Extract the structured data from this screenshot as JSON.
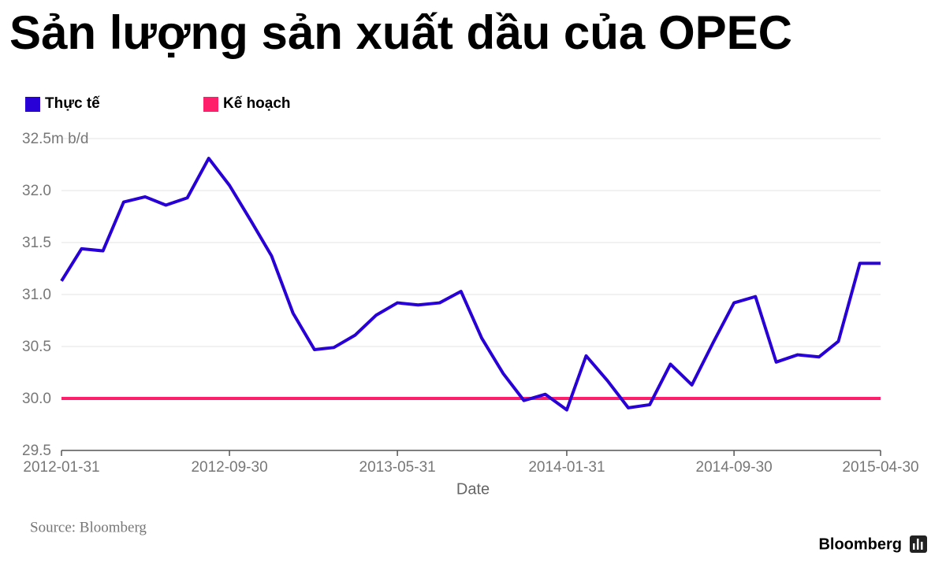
{
  "chart_data": {
    "type": "line",
    "title": "Sản lượng sản xuất dầu của OPEC",
    "x_label": "Date",
    "source": "Source: Bloomberg",
    "brand": "Bloomberg",
    "x": [
      "2012-01-31",
      "2012-02-29",
      "2012-03-31",
      "2012-04-30",
      "2012-05-31",
      "2012-06-30",
      "2012-07-31",
      "2012-08-31",
      "2012-09-30",
      "2012-10-31",
      "2012-11-30",
      "2012-12-31",
      "2013-01-31",
      "2013-02-28",
      "2013-03-31",
      "2013-04-30",
      "2013-05-31",
      "2013-06-30",
      "2013-07-31",
      "2013-08-31",
      "2013-09-30",
      "2013-10-31",
      "2013-11-30",
      "2013-12-31",
      "2014-01-31",
      "2014-02-28",
      "2014-03-31",
      "2014-04-30",
      "2014-05-31",
      "2014-06-30",
      "2014-07-31",
      "2014-08-31",
      "2014-09-30",
      "2014-10-31",
      "2014-11-30",
      "2014-12-31",
      "2015-01-31",
      "2015-02-28",
      "2015-03-31",
      "2015-04-30"
    ],
    "series": [
      {
        "name": "Thực tế",
        "color": "#2800d7",
        "values": [
          31.13,
          31.44,
          31.42,
          31.89,
          31.94,
          31.86,
          31.93,
          32.31,
          32.05,
          31.71,
          31.37,
          30.82,
          30.47,
          30.49,
          30.61,
          30.8,
          30.92,
          30.9,
          30.92,
          31.03,
          30.58,
          30.24,
          29.98,
          30.04,
          29.89,
          30.41,
          30.17,
          29.91,
          29.94,
          30.33,
          30.13,
          30.54,
          30.92,
          30.98,
          30.35,
          30.42,
          30.4,
          30.55,
          31.3,
          31.3
        ]
      },
      {
        "name": "Kế hoạch",
        "color": "#ff1f6a",
        "values": [
          30,
          30,
          30,
          30,
          30,
          30,
          30,
          30,
          30,
          30,
          30,
          30,
          30,
          30,
          30,
          30,
          30,
          30,
          30,
          30,
          30,
          30,
          30,
          30,
          30,
          30,
          30,
          30,
          30,
          30,
          30,
          30,
          30,
          30,
          30,
          30,
          30,
          30,
          30,
          30
        ]
      }
    ],
    "xlim": [
      "2012-01-31",
      "2015-04-30"
    ],
    "xticks": [
      "2012-01-31",
      "2012-09-30",
      "2013-05-31",
      "2014-01-31",
      "2014-09-30",
      "2015-04-30"
    ],
    "ylim": [
      29.5,
      32.5
    ],
    "yticks": [
      29.5,
      {
        "value": 30,
        "label": "30.0"
      },
      30.5,
      {
        "value": 31,
        "label": "31.0"
      },
      31.5,
      {
        "value": 32,
        "label": "32.0"
      },
      {
        "value": 32.5,
        "label": "32.5m b/d"
      }
    ],
    "grid": true,
    "legend": "top-left"
  }
}
